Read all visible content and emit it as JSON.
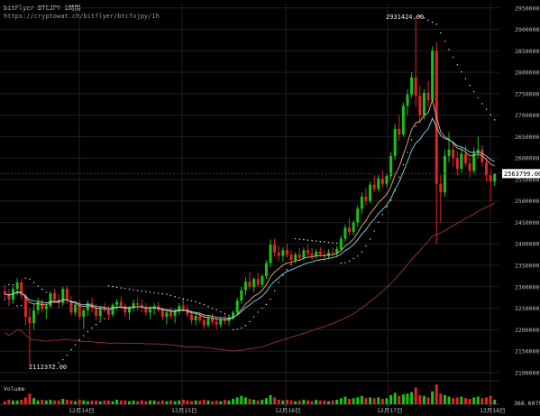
{
  "header": {
    "title": "bitFlyer BTCJPY 1時間",
    "url": "https://cryptowat.ch/bitflyer/btcfxjpy/1h"
  },
  "chart_data": {
    "type": "candlestick",
    "y_axis": {
      "ticks": [
        "2950000",
        "2900000",
        "2850000",
        "2800000",
        "2750000",
        "2700000",
        "2650000",
        "2600000",
        "2550000",
        "2500000",
        "2450000",
        "2400000",
        "2350000",
        "2300000",
        "2250000",
        "2200000",
        "2150000",
        "2100000"
      ],
      "range": [
        2085000,
        2960000
      ]
    },
    "x_ticks": [
      "12月14日",
      "12月15日",
      "12月16日",
      "12月17日",
      "12月18日"
    ],
    "annotations": {
      "high_label": "2931424.00",
      "low_label": "2112372.00",
      "last_price": "2563799.00"
    },
    "volume": {
      "label": "Volume",
      "last_value": "368.60791"
    },
    "colors": {
      "up": "#19c219",
      "down": "#e0242c",
      "ema_fast": "#e6b17a",
      "ema_mid": "#7fd8e8",
      "sma_slow": "#a03040",
      "sar": "#e8e8e8",
      "grid": "#1f1f1f",
      "background": "#000000"
    },
    "candles": [
      [
        2290000,
        2305000,
        2270000,
        2283000
      ],
      [
        2283000,
        2295000,
        2255000,
        2270000
      ],
      [
        2270000,
        2300000,
        2260000,
        2295000
      ],
      [
        2295000,
        2320000,
        2280000,
        2310000
      ],
      [
        2310000,
        2318000,
        2270000,
        2280000
      ],
      [
        2280000,
        2285000,
        2210000,
        2230000
      ],
      [
        2230000,
        2250000,
        2112372,
        2215000
      ],
      [
        2215000,
        2260000,
        2200000,
        2245000
      ],
      [
        2245000,
        2275000,
        2235000,
        2265000
      ],
      [
        2265000,
        2272000,
        2240000,
        2248000
      ],
      [
        2248000,
        2262000,
        2225000,
        2255000
      ],
      [
        2255000,
        2290000,
        2250000,
        2285000
      ],
      [
        2285000,
        2295000,
        2262000,
        2270000
      ],
      [
        2270000,
        2282000,
        2250000,
        2262000
      ],
      [
        2262000,
        2300000,
        2255000,
        2295000
      ],
      [
        2295000,
        2302000,
        2260000,
        2268000
      ],
      [
        2268000,
        2278000,
        2232000,
        2240000
      ],
      [
        2240000,
        2262000,
        2232000,
        2258000
      ],
      [
        2258000,
        2268000,
        2222000,
        2230000
      ],
      [
        2230000,
        2250000,
        2202000,
        2245000
      ],
      [
        2245000,
        2268000,
        2232000,
        2262000
      ],
      [
        2262000,
        2275000,
        2240000,
        2250000
      ],
      [
        2250000,
        2260000,
        2222000,
        2232000
      ],
      [
        2232000,
        2255000,
        2222000,
        2250000
      ],
      [
        2250000,
        2262000,
        2240000,
        2245000
      ],
      [
        2245000,
        2255000,
        2222000,
        2235000
      ],
      [
        2235000,
        2262000,
        2230000,
        2258000
      ],
      [
        2258000,
        2272000,
        2245000,
        2265000
      ],
      [
        2265000,
        2278000,
        2250000,
        2255000
      ],
      [
        2255000,
        2262000,
        2230000,
        2240000
      ],
      [
        2240000,
        2255000,
        2222000,
        2250000
      ],
      [
        2250000,
        2270000,
        2242000,
        2262000
      ],
      [
        2262000,
        2275000,
        2245000,
        2258000
      ],
      [
        2258000,
        2270000,
        2240000,
        2252000
      ],
      [
        2252000,
        2262000,
        2232000,
        2240000
      ],
      [
        2240000,
        2255000,
        2225000,
        2248000
      ],
      [
        2248000,
        2262000,
        2235000,
        2255000
      ],
      [
        2255000,
        2265000,
        2240000,
        2245000
      ],
      [
        2245000,
        2252000,
        2222000,
        2230000
      ],
      [
        2230000,
        2245000,
        2212000,
        2240000
      ],
      [
        2240000,
        2252000,
        2225000,
        2232000
      ],
      [
        2232000,
        2248000,
        2215000,
        2242000
      ],
      [
        2242000,
        2262000,
        2235000,
        2255000
      ],
      [
        2255000,
        2270000,
        2242000,
        2248000
      ],
      [
        2248000,
        2258000,
        2228000,
        2235000
      ],
      [
        2235000,
        2245000,
        2212000,
        2222000
      ],
      [
        2222000,
        2240000,
        2210000,
        2232000
      ],
      [
        2232000,
        2242000,
        2215000,
        2222000
      ],
      [
        2222000,
        2235000,
        2202000,
        2210000
      ],
      [
        2210000,
        2232000,
        2205000,
        2228000
      ],
      [
        2228000,
        2238000,
        2212000,
        2218000
      ],
      [
        2218000,
        2228000,
        2200000,
        2212000
      ],
      [
        2212000,
        2228000,
        2205000,
        2224000
      ],
      [
        2224000,
        2235000,
        2212000,
        2220000
      ],
      [
        2220000,
        2232000,
        2210000,
        2228000
      ],
      [
        2228000,
        2245000,
        2222000,
        2240000
      ],
      [
        2240000,
        2275000,
        2235000,
        2268000
      ],
      [
        2268000,
        2300000,
        2260000,
        2292000
      ],
      [
        2292000,
        2322000,
        2280000,
        2312000
      ],
      [
        2312000,
        2335000,
        2295000,
        2300000
      ],
      [
        2300000,
        2322000,
        2288000,
        2318000
      ],
      [
        2318000,
        2332000,
        2300000,
        2305000
      ],
      [
        2305000,
        2330000,
        2298000,
        2325000
      ],
      [
        2325000,
        2362000,
        2318000,
        2355000
      ],
      [
        2355000,
        2410000,
        2345000,
        2398000
      ],
      [
        2398000,
        2412000,
        2370000,
        2380000
      ],
      [
        2380000,
        2395000,
        2360000,
        2372000
      ],
      [
        2372000,
        2392000,
        2358000,
        2385000
      ],
      [
        2385000,
        2400000,
        2368000,
        2375000
      ],
      [
        2375000,
        2385000,
        2352000,
        2362000
      ],
      [
        2362000,
        2380000,
        2355000,
        2375000
      ],
      [
        2375000,
        2390000,
        2360000,
        2368000
      ],
      [
        2368000,
        2392000,
        2362000,
        2385000
      ],
      [
        2385000,
        2398000,
        2370000,
        2378000
      ],
      [
        2378000,
        2390000,
        2362000,
        2372000
      ],
      [
        2372000,
        2388000,
        2365000,
        2382000
      ],
      [
        2382000,
        2392000,
        2370000,
        2375000
      ],
      [
        2375000,
        2385000,
        2360000,
        2372000
      ],
      [
        2372000,
        2388000,
        2365000,
        2380000
      ],
      [
        2380000,
        2392000,
        2372000,
        2378000
      ],
      [
        2378000,
        2395000,
        2370000,
        2388000
      ],
      [
        2388000,
        2420000,
        2382000,
        2412000
      ],
      [
        2412000,
        2445000,
        2405000,
        2438000
      ],
      [
        2438000,
        2460000,
        2420000,
        2428000
      ],
      [
        2428000,
        2455000,
        2420000,
        2450000
      ],
      [
        2450000,
        2490000,
        2440000,
        2482000
      ],
      [
        2482000,
        2520000,
        2470000,
        2510000
      ],
      [
        2510000,
        2530000,
        2490000,
        2500000
      ],
      [
        2500000,
        2545000,
        2495000,
        2538000
      ],
      [
        2538000,
        2560000,
        2520000,
        2528000
      ],
      [
        2528000,
        2560000,
        2522000,
        2552000
      ],
      [
        2552000,
        2570000,
        2530000,
        2540000
      ],
      [
        2540000,
        2562000,
        2532000,
        2558000
      ],
      [
        2558000,
        2615000,
        2550000,
        2605000
      ],
      [
        2605000,
        2680000,
        2595000,
        2668000
      ],
      [
        2668000,
        2700000,
        2640000,
        2655000
      ],
      [
        2655000,
        2730000,
        2650000,
        2722000
      ],
      [
        2722000,
        2760000,
        2700000,
        2748000
      ],
      [
        2748000,
        2800000,
        2740000,
        2788000
      ],
      [
        2788000,
        2931424,
        2720000,
        2745000
      ],
      [
        2745000,
        2770000,
        2680000,
        2700000
      ],
      [
        2700000,
        2760000,
        2690000,
        2752000
      ],
      [
        2752000,
        2780000,
        2720000,
        2735000
      ],
      [
        2735000,
        2860000,
        2730000,
        2850000
      ],
      [
        2850000,
        2870000,
        2400000,
        2540000
      ],
      [
        2540000,
        2560000,
        2450000,
        2520000
      ],
      [
        2520000,
        2620000,
        2510000,
        2605000
      ],
      [
        2605000,
        2660000,
        2590000,
        2620000
      ],
      [
        2620000,
        2640000,
        2580000,
        2600000
      ],
      [
        2600000,
        2615000,
        2560000,
        2575000
      ],
      [
        2575000,
        2625000,
        2565000,
        2610000
      ],
      [
        2610000,
        2630000,
        2580000,
        2588000
      ],
      [
        2588000,
        2600000,
        2555000,
        2570000
      ],
      [
        2570000,
        2625000,
        2565000,
        2612000
      ],
      [
        2612000,
        2650000,
        2600000,
        2620000
      ],
      [
        2620000,
        2630000,
        2580000,
        2590000
      ],
      [
        2590000,
        2600000,
        2545000,
        2560000
      ],
      [
        2560000,
        2575000,
        2500000,
        2545000
      ],
      [
        2545000,
        2560000,
        2535000,
        2563799
      ]
    ],
    "volumes": [
      4,
      6,
      5,
      5,
      6,
      9,
      14,
      8,
      5,
      6,
      5,
      6,
      5,
      5,
      7,
      6,
      5,
      4,
      6,
      5,
      4,
      5,
      5,
      4,
      5,
      5,
      4,
      6,
      5,
      5,
      4,
      5,
      4,
      5,
      4,
      5,
      5,
      4,
      5,
      4,
      5,
      4,
      5,
      6,
      5,
      4,
      5,
      5,
      6,
      5,
      4,
      5,
      4,
      6,
      5,
      7,
      9,
      11,
      9,
      7,
      6,
      5,
      6,
      8,
      12,
      9,
      6,
      5,
      6,
      5,
      4,
      5,
      6,
      5,
      4,
      6,
      5,
      5,
      4,
      5,
      6,
      8,
      10,
      7,
      8,
      9,
      11,
      8,
      9,
      8,
      9,
      7,
      8,
      12,
      15,
      11,
      13,
      14,
      16,
      22,
      12,
      11,
      9,
      17,
      26,
      14,
      12,
      10,
      8,
      9,
      10,
      8,
      7,
      9,
      10,
      8,
      9,
      11,
      6
    ]
  }
}
